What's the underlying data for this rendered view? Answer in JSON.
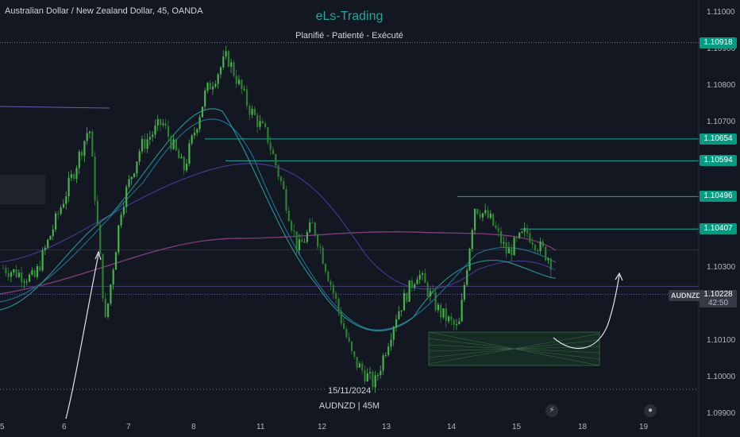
{
  "header": {
    "title": "Australian Dollar / New Zealand Dollar, 45, OANDA"
  },
  "brand": {
    "name": "eLs-Trading",
    "tagline": "Planifié - Patienté - Exécuté"
  },
  "watermark": {
    "text": "AUDNZD | 45M"
  },
  "date_label": "15/11/2024",
  "symbol_badge": "AUDNZD",
  "current_price": {
    "value": "1.10228",
    "countdown": "42:50"
  },
  "y_axis_ticks": [
    "1.11000",
    "1.10900",
    "1.10800",
    "1.10700",
    "1.10300",
    "1.10100",
    "1.10000",
    "1.09900"
  ],
  "x_axis_ticks": [
    "5",
    "6",
    "7",
    "8",
    "11",
    "12",
    "13",
    "14",
    "15",
    "18",
    "19"
  ],
  "levels": [
    {
      "label": "1.10918",
      "value": 1.10918,
      "style": "dotted"
    },
    {
      "label": "1.10654",
      "value": 1.10654,
      "style": "solid"
    },
    {
      "label": "1.10594",
      "value": 1.10594,
      "style": "solid"
    },
    {
      "label": "1.10496",
      "value": 1.10496,
      "style": "solid"
    },
    {
      "label": "1.10407",
      "value": 1.10407,
      "style": "solid"
    }
  ],
  "icons": {
    "lightning": "lightning-icon",
    "globe": "globe-icon"
  },
  "colors": {
    "up": "#26a69a",
    "down": "#ef5350",
    "candle_up": "#4caf50",
    "background": "#131722",
    "accent": "#089981"
  },
  "chart_data": {
    "type": "candlestick",
    "title": "Australian Dollar / New Zealand Dollar, 45, OANDA",
    "ylim": [
      1.0989,
      1.1103
    ],
    "x_ticks": [
      "5",
      "6",
      "7",
      "8",
      "11",
      "12",
      "13",
      "14",
      "15",
      "18",
      "19"
    ],
    "y_ticks": [
      1.11,
      1.109,
      1.108,
      1.107,
      1.103,
      1.101,
      1.1,
      1.099
    ],
    "close_path": [
      [
        "5",
        1.1027
      ],
      [
        "6",
        1.1056
      ],
      [
        "6",
        1.1069
      ],
      [
        "6",
        1.1015
      ],
      [
        "6",
        1.1047
      ],
      [
        "7",
        1.1063
      ],
      [
        "7",
        1.107
      ],
      [
        "7",
        1.1057
      ],
      [
        "8",
        1.1078
      ],
      [
        "8",
        1.1088
      ],
      [
        "8",
        1.1074
      ],
      [
        "11",
        1.1066
      ],
      [
        "11",
        1.1052
      ],
      [
        "11",
        1.1035
      ],
      [
        "11",
        1.1042
      ],
      [
        "12",
        1.1025
      ],
      [
        "12",
        1.1005
      ],
      [
        "12",
        1.0998
      ],
      [
        "13",
        1.1017
      ],
      [
        "13",
        1.1029
      ],
      [
        "13",
        1.1018
      ],
      [
        "14",
        1.1013
      ],
      [
        "14",
        1.1047
      ],
      [
        "14",
        1.1043
      ],
      [
        "14",
        1.1034
      ],
      [
        "15",
        1.104
      ],
      [
        "15",
        1.1033
      ],
      [
        "15",
        1.1022
      ]
    ],
    "horizontal_levels": [
      1.10918,
      1.10654,
      1.10594,
      1.10496,
      1.10407
    ],
    "current_price": 1.10228
  }
}
